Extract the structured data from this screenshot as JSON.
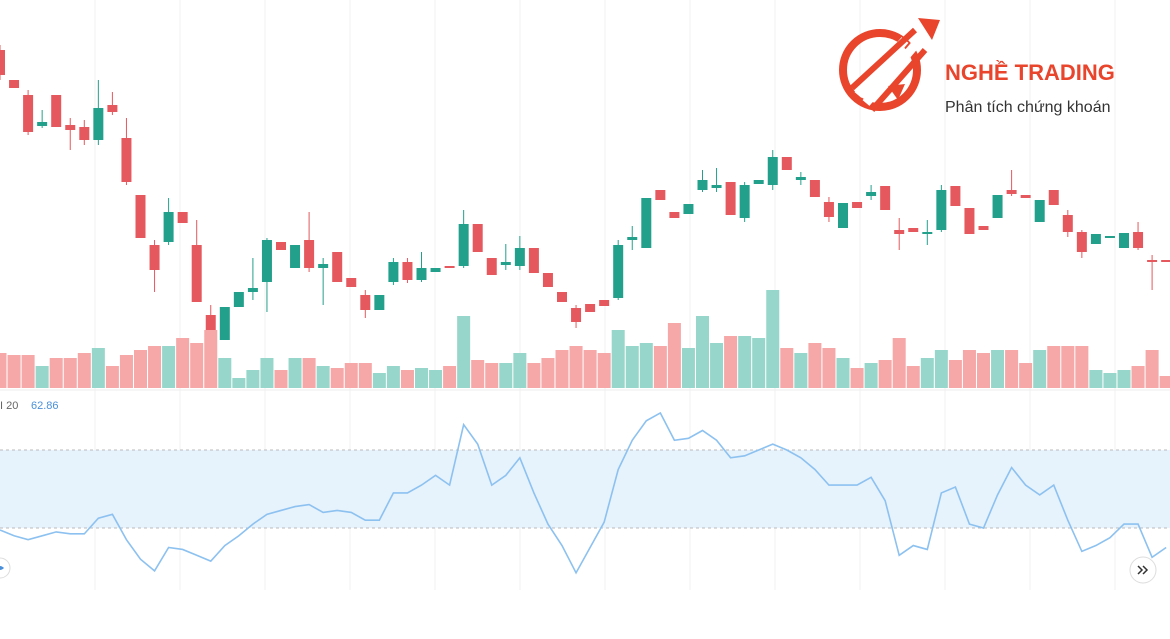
{
  "chart_data": [
    {
      "type": "candlestick",
      "open": [
        350,
        320,
        305,
        274,
        305,
        275,
        273,
        260,
        295,
        262,
        205,
        155,
        158,
        188,
        155,
        85,
        60,
        93,
        108,
        118,
        158,
        132,
        160,
        132,
        148,
        122,
        105,
        90,
        118,
        138,
        120,
        128,
        134,
        134,
        176,
        142,
        135,
        134,
        152,
        127,
        108,
        92,
        96,
        100,
        102,
        160,
        152,
        210,
        188,
        186,
        210,
        212,
        218,
        182,
        216,
        215,
        243,
        220,
        220,
        198,
        172,
        198,
        204,
        214,
        170,
        172,
        166,
        170,
        214,
        192,
        174,
        182,
        210,
        205,
        178,
        210,
        185,
        168,
        156,
        162,
        152,
        168,
        140,
        140
      ],
      "high": [
        355,
        320,
        310,
        290,
        305,
        282,
        280,
        320,
        308,
        282,
        205,
        160,
        202,
        188,
        180,
        95,
        93,
        108,
        142,
        162,
        158,
        155,
        188,
        142,
        148,
        122,
        110,
        105,
        142,
        142,
        148,
        132,
        134,
        190,
        176,
        142,
        156,
        164,
        152,
        127,
        108,
        95,
        96,
        100,
        160,
        174,
        202,
        210,
        188,
        196,
        230,
        232,
        218,
        218,
        220,
        250,
        243,
        228,
        220,
        203,
        197,
        198,
        215,
        214,
        182,
        172,
        180,
        215,
        214,
        192,
        174,
        205,
        230,
        205,
        200,
        210,
        190,
        170,
        166,
        164,
        167,
        178,
        145,
        140
      ],
      "low": [
        320,
        312,
        265,
        272,
        273,
        250,
        255,
        255,
        285,
        215,
        162,
        108,
        155,
        177,
        98,
        55,
        60,
        93,
        100,
        88,
        150,
        132,
        128,
        95,
        118,
        113,
        82,
        90,
        115,
        117,
        118,
        128,
        132,
        132,
        148,
        125,
        130,
        130,
        127,
        113,
        98,
        72,
        88,
        94,
        100,
        150,
        152,
        200,
        182,
        186,
        208,
        208,
        185,
        178,
        216,
        210,
        230,
        215,
        203,
        178,
        172,
        192,
        200,
        190,
        150,
        168,
        155,
        168,
        194,
        166,
        170,
        182,
        204,
        202,
        178,
        195,
        163,
        142,
        156,
        162,
        152,
        150,
        110,
        138
      ],
      "close": [
        325,
        312,
        268,
        278,
        273,
        270,
        260,
        292,
        288,
        218,
        162,
        130,
        188,
        177,
        98,
        58,
        93,
        108,
        112,
        160,
        150,
        155,
        132,
        136,
        118,
        113,
        90,
        105,
        138,
        120,
        132,
        132,
        132,
        176,
        148,
        125,
        138,
        152,
        127,
        113,
        98,
        78,
        88,
        94,
        155,
        163,
        202,
        200,
        182,
        196,
        220,
        215,
        185,
        215,
        220,
        243,
        230,
        223,
        203,
        183,
        197,
        192,
        208,
        190,
        166,
        168,
        168,
        210,
        194,
        166,
        170,
        205,
        206,
        202,
        200,
        195,
        168,
        148,
        166,
        164,
        167,
        152,
        138,
        138
      ],
      "up_color": "#22a08b",
      "down_color": "#e5585d",
      "ylim": [
        0,
        400
      ]
    },
    {
      "type": "bar",
      "values": [
        35,
        33,
        33,
        22,
        30,
        30,
        35,
        40,
        22,
        33,
        38,
        42,
        42,
        50,
        45,
        58,
        30,
        10,
        18,
        30,
        18,
        30,
        30,
        22,
        20,
        25,
        25,
        15,
        22,
        18,
        20,
        18,
        22,
        72,
        28,
        25,
        25,
        35,
        25,
        30,
        38,
        42,
        38,
        35,
        58,
        42,
        45,
        42,
        65,
        40,
        72,
        45,
        52,
        52,
        50,
        98,
        40,
        35,
        45,
        40,
        30,
        20,
        25,
        28,
        50,
        22,
        30,
        38,
        28,
        38,
        35,
        38,
        38,
        25,
        38,
        42,
        42,
        42,
        18,
        15,
        18,
        22,
        38,
        12
      ],
      "up_color": "#97d6ca",
      "down_color": "#f6a7a7",
      "ylim": [
        0,
        100
      ]
    },
    {
      "type": "line",
      "label": "I 20",
      "value_label": 62.86,
      "values": [
        29,
        26,
        24,
        26,
        28,
        27,
        27,
        35,
        37,
        24,
        14,
        8,
        20,
        19,
        16,
        13,
        21,
        26,
        32,
        37,
        39,
        41,
        42,
        38,
        39,
        38,
        34,
        34,
        48,
        48,
        52,
        57,
        52,
        83,
        73,
        52,
        57,
        66,
        48,
        32,
        21,
        7,
        20,
        33,
        60,
        75,
        85,
        89,
        75,
        76,
        80,
        75,
        66,
        67,
        70,
        73,
        70,
        66,
        60,
        52,
        52,
        52,
        56,
        44,
        16,
        21,
        19,
        48,
        51,
        32,
        30,
        47,
        61,
        52,
        47,
        52,
        34,
        18,
        21,
        25,
        32,
        32,
        15,
        20
      ],
      "color": "#8cc1f0",
      "band": [
        30,
        70
      ],
      "band_color": "#e6f2fc",
      "ylim": [
        0,
        100
      ]
    }
  ],
  "logo": {
    "title": "NGHỀ TRADING",
    "subtitle": "Phân tích chứng khoán"
  }
}
